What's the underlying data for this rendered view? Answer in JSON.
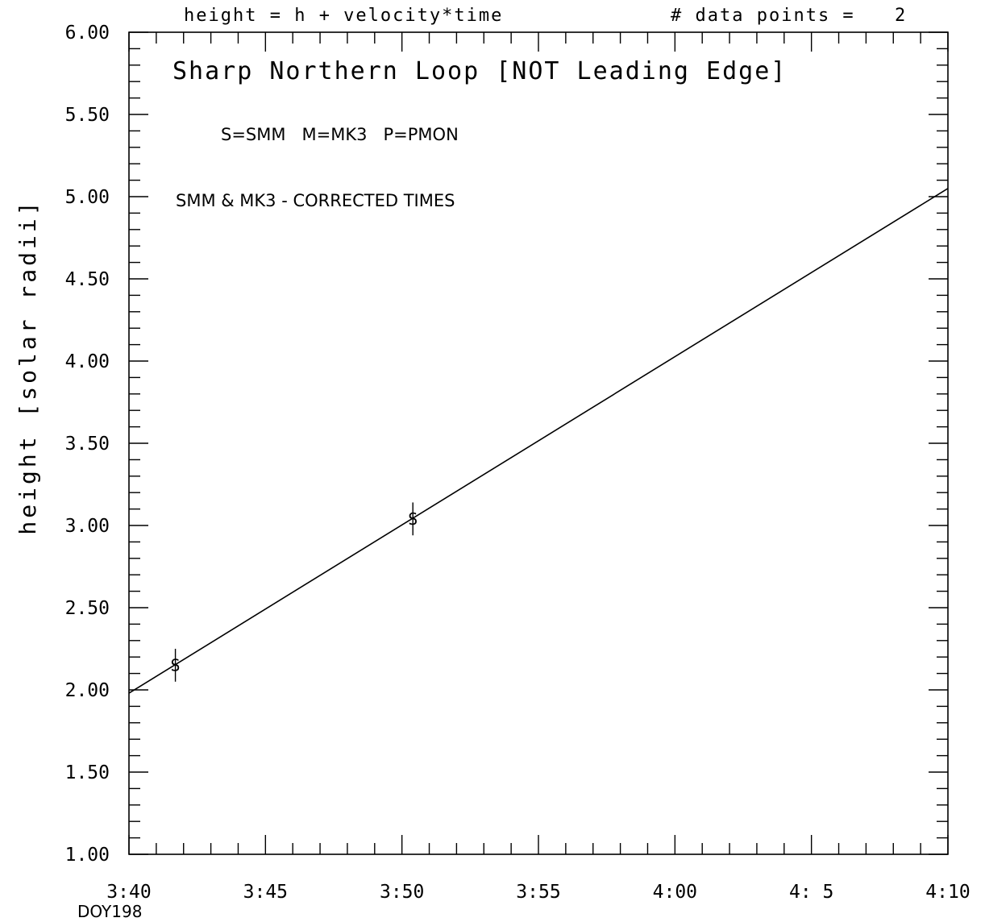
{
  "header": {
    "formula": "height = h + velocity*time",
    "points_label": "# data points =",
    "points_count": "2"
  },
  "chart_data": {
    "type": "scatter",
    "title": "Sharp Northern Loop [NOT Leading Edge]",
    "legend_text": "S=SMM   M=MK3   P=PMON",
    "note": "SMM & MK3 - CORRECTED TIMES",
    "ylabel": "height [solar radii]",
    "xlabel": "DOY198",
    "x_unit": "minutes past 3:40",
    "xlim": [
      0,
      30
    ],
    "ylim": [
      1.0,
      6.0
    ],
    "x_ticks": [
      0,
      5,
      10,
      15,
      20,
      25,
      30
    ],
    "x_tick_labels": [
      "3:40",
      "3:45",
      "3:50",
      "3:55",
      "4:00",
      "4: 5",
      "4:10"
    ],
    "y_ticks": [
      1.0,
      1.5,
      2.0,
      2.5,
      3.0,
      3.5,
      4.0,
      4.5,
      5.0,
      5.5,
      6.0
    ],
    "y_tick_labels": [
      "1.00",
      "1.50",
      "2.00",
      "2.50",
      "3.00",
      "3.50",
      "4.00",
      "4.50",
      "5.00",
      "5.50",
      "6.00"
    ],
    "points": [
      {
        "x": 1.7,
        "y": 2.15,
        "err": 0.1,
        "symbol": "S"
      },
      {
        "x": 10.4,
        "y": 3.04,
        "err": 0.1,
        "symbol": "S"
      }
    ],
    "fit_line": {
      "x": [
        0,
        30
      ],
      "y": [
        1.98,
        5.05
      ]
    },
    "colors": {
      "ink": "#000000",
      "background": "#ffffff"
    }
  }
}
